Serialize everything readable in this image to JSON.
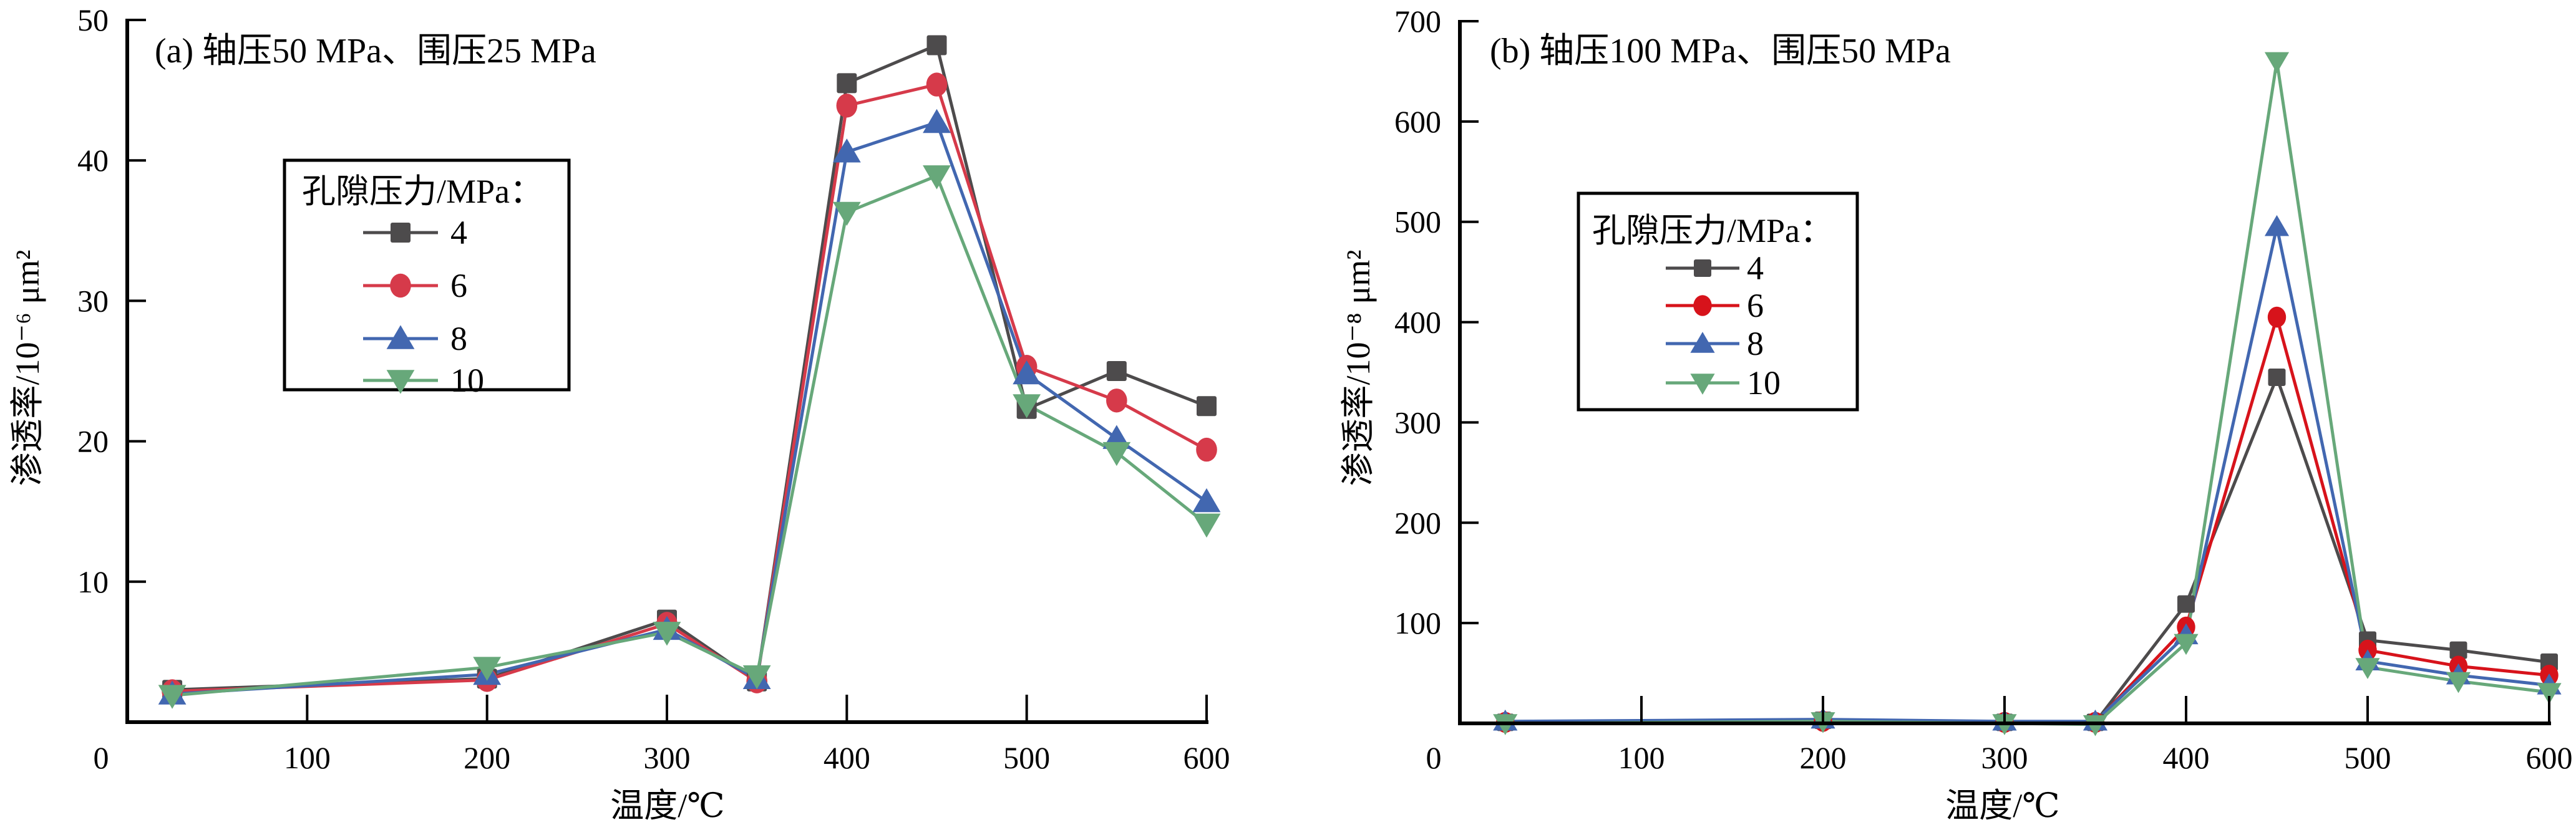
{
  "chart_data": [
    {
      "type": "line",
      "title": "(a) 轴压50 MPa、围压25 MPa",
      "xlabel": "温度/℃",
      "ylabel": "渗透率/10⁻⁶ μm²",
      "xlim": [
        0,
        600
      ],
      "ylim": [
        0,
        50
      ],
      "xticks": [
        "0",
        "100",
        "200",
        "300",
        "400",
        "500",
        "600"
      ],
      "yticks": [
        "10",
        "20",
        "30",
        "40",
        "50"
      ],
      "ytick_values": [
        10,
        20,
        30,
        40,
        50
      ],
      "xtick_values": [
        0,
        100,
        200,
        300,
        400,
        500,
        600
      ],
      "grid": false,
      "legend": {
        "title": "孔隙压力/MPa：",
        "placement": "left-center"
      },
      "x": [
        25,
        200,
        300,
        350,
        400,
        450,
        500,
        550,
        600
      ],
      "series": [
        {
          "name": "4",
          "marker": "square",
          "color": "#4d4b4c",
          "values": [
            2.3,
            3.1,
            7.3,
            2.9,
            45.5,
            48.2,
            22.3,
            25.0,
            22.5
          ]
        },
        {
          "name": "6",
          "marker": "circle",
          "color": "#d63a4a",
          "values": [
            2.2,
            3.0,
            7.0,
            2.9,
            43.9,
            45.4,
            25.3,
            22.9,
            19.4
          ]
        },
        {
          "name": "8",
          "marker": "triangle-up",
          "color": "#4267b0",
          "values": [
            2.0,
            3.4,
            6.6,
            3.1,
            40.6,
            42.7,
            24.8,
            20.2,
            15.7
          ]
        },
        {
          "name": "10",
          "marker": "triangle-down",
          "color": "#67a87a",
          "values": [
            1.9,
            3.9,
            6.4,
            3.3,
            36.3,
            38.9,
            22.6,
            19.2,
            14.1
          ]
        }
      ]
    },
    {
      "type": "line",
      "title": "(b) 轴压100 MPa、围压50 MPa",
      "xlabel": "温度/℃",
      "ylabel": "渗透率/10⁻⁸ μm²",
      "xlim": [
        0,
        600
      ],
      "ylim": [
        0,
        700
      ],
      "xticks": [
        "0",
        "100",
        "200",
        "300",
        "400",
        "500",
        "600"
      ],
      "yticks": [
        "100",
        "200",
        "300",
        "400",
        "500",
        "600",
        "700"
      ],
      "ytick_values": [
        100,
        200,
        300,
        400,
        500,
        600,
        700
      ],
      "xtick_values": [
        0,
        100,
        200,
        300,
        400,
        500,
        600
      ],
      "grid": false,
      "legend": {
        "title": "孔隙压力/MPa：",
        "placement": "center"
      },
      "x": [
        25,
        200,
        300,
        350,
        400,
        450,
        500,
        550,
        600
      ],
      "series": [
        {
          "name": "4",
          "marker": "square",
          "color": "#4d4b4c",
          "values": [
            1,
            3,
            1,
            1,
            119,
            345,
            83,
            73,
            61
          ]
        },
        {
          "name": "6",
          "marker": "circle",
          "color": "#d7131b",
          "values": [
            1,
            2,
            1,
            1,
            96,
            405,
            73,
            57,
            48
          ]
        },
        {
          "name": "8",
          "marker": "triangle-up",
          "color": "#4267b0",
          "values": [
            2,
            4,
            2,
            2,
            88,
            495,
            62,
            48,
            38
          ]
        },
        {
          "name": "10",
          "marker": "triangle-down",
          "color": "#67a87a",
          "values": [
            0,
            2,
            0,
            -1,
            80,
            660,
            56,
            42,
            31
          ]
        }
      ]
    }
  ]
}
